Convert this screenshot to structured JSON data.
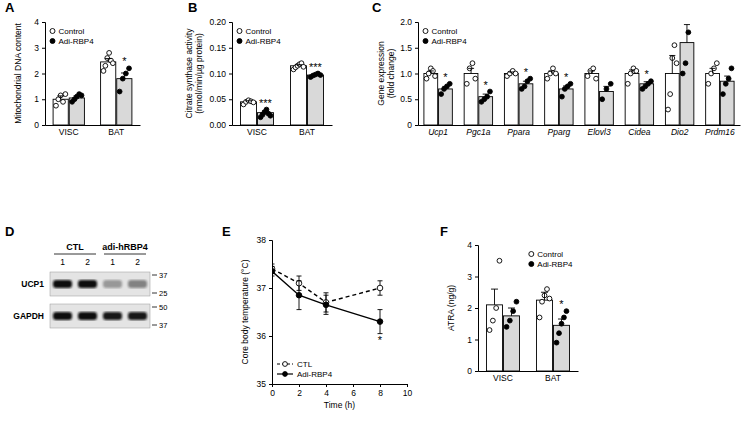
{
  "chart_data": [
    {
      "type": "bar",
      "title": "A",
      "y_label": "Mitochondrial DNA content",
      "categories": [
        "VISC",
        "BAT"
      ],
      "ylim": [
        0,
        4
      ],
      "yticks": [
        0,
        1,
        2,
        3,
        4
      ],
      "legend": "top-left",
      "series": [
        {
          "name": "Control",
          "color": "#ffffff",
          "marker": "open-circle",
          "values": [
            1.0,
            2.45
          ],
          "errors": [
            0.13,
            0.13
          ],
          "points": [
            [
              0.75,
              1.0,
              1.15,
              0.9,
              1.2
            ],
            [
              2.1,
              2.3,
              2.6,
              2.8,
              2.5,
              2.4
            ]
          ]
        },
        {
          "name": "Adi-RBP4",
          "color": "#d9d9d9",
          "marker": "filled-circle",
          "values": [
            1.05,
            1.8
          ],
          "errors": [
            0.08,
            0.22
          ],
          "points": [
            [
              0.9,
              1.0,
              1.1,
              1.2,
              1.15
            ],
            [
              1.3,
              1.8,
              2.0,
              2.2
            ]
          ],
          "significance": [
            null,
            "*"
          ]
        }
      ]
    },
    {
      "type": "bar",
      "title": "B",
      "y_label": [
        "Citrate synthase activity",
        "(nmol/min/µg protein)"
      ],
      "categories": [
        "VISC",
        "BAT"
      ],
      "ylim": [
        0,
        0.2
      ],
      "yticks": [
        {
          "value": 0,
          "label": "0.00"
        },
        0.05,
        {
          "value": 0.1,
          "label": "0.10"
        },
        0.15,
        {
          "value": 0.2,
          "label": "0.20"
        }
      ],
      "legend": "top-left",
      "series": [
        {
          "name": "Control",
          "color": "#ffffff",
          "marker": "open-circle",
          "values": [
            0.045,
            0.115
          ],
          "errors": [
            0.002,
            0.002
          ],
          "points": [
            [
              0.04,
              0.045,
              0.048,
              0.046,
              0.044
            ],
            [
              0.108,
              0.112,
              0.115,
              0.118,
              0.12,
              0.113
            ]
          ]
        },
        {
          "name": "Adi-RBP4",
          "color": "#d9d9d9",
          "marker": "filled-circle",
          "values": [
            0.024,
            0.097
          ],
          "errors": [
            0.003,
            0.002
          ],
          "points": [
            [
              0.015,
              0.02,
              0.025,
              0.03,
              0.022,
              0.018
            ],
            [
              0.093,
              0.096,
              0.098,
              0.1,
              0.097
            ]
          ],
          "significance": [
            "***",
            "***"
          ]
        }
      ]
    },
    {
      "type": "bar",
      "title": "C",
      "y_label": [
        "Gene expression",
        "(fold change)"
      ],
      "categories": [
        "Ucp1",
        "Pgc1a",
        "Ppara",
        "Pparg",
        "Elovl3",
        "Cidea",
        "Dio2",
        "Prdm16"
      ],
      "ylim": [
        0,
        2
      ],
      "yticks": [
        0,
        0.5,
        {
          "value": 1,
          "label": "1.0"
        },
        1.5,
        {
          "value": 2,
          "label": "2.0"
        }
      ],
      "legend": "top-left",
      "series": [
        {
          "name": "Control",
          "color": "#ffffff",
          "marker": "open-circle",
          "values": [
            1.0,
            1.0,
            1.0,
            1.0,
            1.0,
            1.0,
            1.0,
            1.0
          ],
          "errors": [
            0.05,
            0.1,
            0.03,
            0.05,
            0.05,
            0.07,
            0.35,
            0.1
          ],
          "points": [
            [
              0.9,
              1.0,
              1.1,
              1.05,
              0.95
            ],
            [
              0.8,
              1.1,
              1.2,
              0.9
            ],
            [
              0.95,
              1.0,
              1.05,
              1.0
            ],
            [
              0.9,
              1.0,
              1.1,
              1.0
            ],
            [
              0.95,
              1.05,
              1.1,
              0.9
            ],
            [
              0.8,
              1.0,
              1.1,
              1.05
            ],
            [
              0.3,
              0.6,
              1.3,
              1.55,
              1.2
            ],
            [
              0.8,
              1.0,
              1.1,
              1.2
            ]
          ]
        },
        {
          "name": "Adi-RBP4",
          "color": "#d9d9d9",
          "marker": "filled-circle",
          "values": [
            0.7,
            0.55,
            0.8,
            0.7,
            0.65,
            0.8,
            1.6,
            0.85
          ],
          "errors": [
            0.05,
            0.05,
            0.05,
            0.06,
            0.1,
            0.04,
            0.35,
            0.1
          ],
          "points": [
            [
              0.6,
              0.7,
              0.75,
              0.8
            ],
            [
              0.45,
              0.5,
              0.55,
              0.65
            ],
            [
              0.7,
              0.75,
              0.85,
              0.9
            ],
            [
              0.55,
              0.7,
              0.75,
              0.8
            ],
            [
              0.5,
              0.7,
              0.8
            ],
            [
              0.7,
              0.75,
              0.8,
              0.85
            ],
            [
              1.0,
              1.2,
              1.8,
              2.1
            ],
            [
              0.6,
              0.8,
              0.9,
              1.1
            ]
          ],
          "significance": [
            "*",
            "*",
            "*",
            "*",
            null,
            "*",
            null,
            null
          ]
        }
      ]
    },
    {
      "type": "blot",
      "title": "D",
      "groups": [
        "CTL",
        "adi-hRBP4"
      ],
      "lanes": [
        "1",
        "2",
        "1",
        "2"
      ],
      "rows": [
        {
          "name": "UCP1",
          "values": [
            1.0,
            1.0,
            0.35,
            0.45
          ],
          "markers": [
            37,
            25
          ]
        },
        {
          "name": "GAPDH",
          "values": [
            1.0,
            1.0,
            0.95,
            0.95
          ],
          "markers": [
            50,
            37
          ]
        }
      ]
    },
    {
      "type": "line",
      "title": "E",
      "x_label": "Time (h)",
      "y_label": "Core body temperature (°C)",
      "x": [
        0,
        2,
        4,
        8
      ],
      "xlim": [
        0,
        10
      ],
      "xticks": [
        0,
        2,
        4,
        6,
        8,
        10
      ],
      "ylim": [
        35,
        38
      ],
      "yticks": [
        35,
        36,
        37,
        38
      ],
      "legend": "bottom-left",
      "series": [
        {
          "name": "CTL",
          "color": "#000000",
          "marker": "open-circle",
          "line_style": "dashed",
          "values": [
            37.4,
            37.1,
            36.7,
            37.0
          ],
          "errors": [
            0.1,
            0.15,
            0.2,
            0.15
          ]
        },
        {
          "name": "Adi-RBP4",
          "color": "#000000",
          "marker": "filled-circle",
          "line_style": "solid",
          "values": [
            37.35,
            36.85,
            36.65,
            36.3
          ],
          "errors": [
            0.1,
            0.3,
            0.2,
            0.25
          ],
          "significance": [
            null,
            null,
            null,
            "*"
          ]
        }
      ]
    },
    {
      "type": "bar",
      "title": "F",
      "y_label": "ATRA (ng/g)",
      "categories": [
        "VISC",
        "BAT"
      ],
      "ylim": [
        0,
        4
      ],
      "yticks": [
        0,
        1,
        2,
        3,
        4
      ],
      "legend": "top-right",
      "series": [
        {
          "name": "Control",
          "color": "#ffffff",
          "marker": "open-circle",
          "values": [
            2.1,
            2.25
          ],
          "errors": [
            0.5,
            0.25
          ],
          "points": [
            [
              1.3,
              1.6,
              2.0,
              3.5
            ],
            [
              1.7,
              2.2,
              2.4,
              2.6,
              2.3
            ]
          ]
        },
        {
          "name": "Adi-RBP4",
          "color": "#d9d9d9",
          "marker": "filled-circle",
          "values": [
            1.75,
            1.45
          ],
          "errors": [
            0.25,
            0.2
          ],
          "points": [
            [
              1.4,
              1.6,
              1.9,
              2.2
            ],
            [
              0.9,
              1.2,
              1.5,
              1.7,
              1.9
            ]
          ],
          "significance": [
            null,
            "*"
          ]
        }
      ]
    }
  ]
}
